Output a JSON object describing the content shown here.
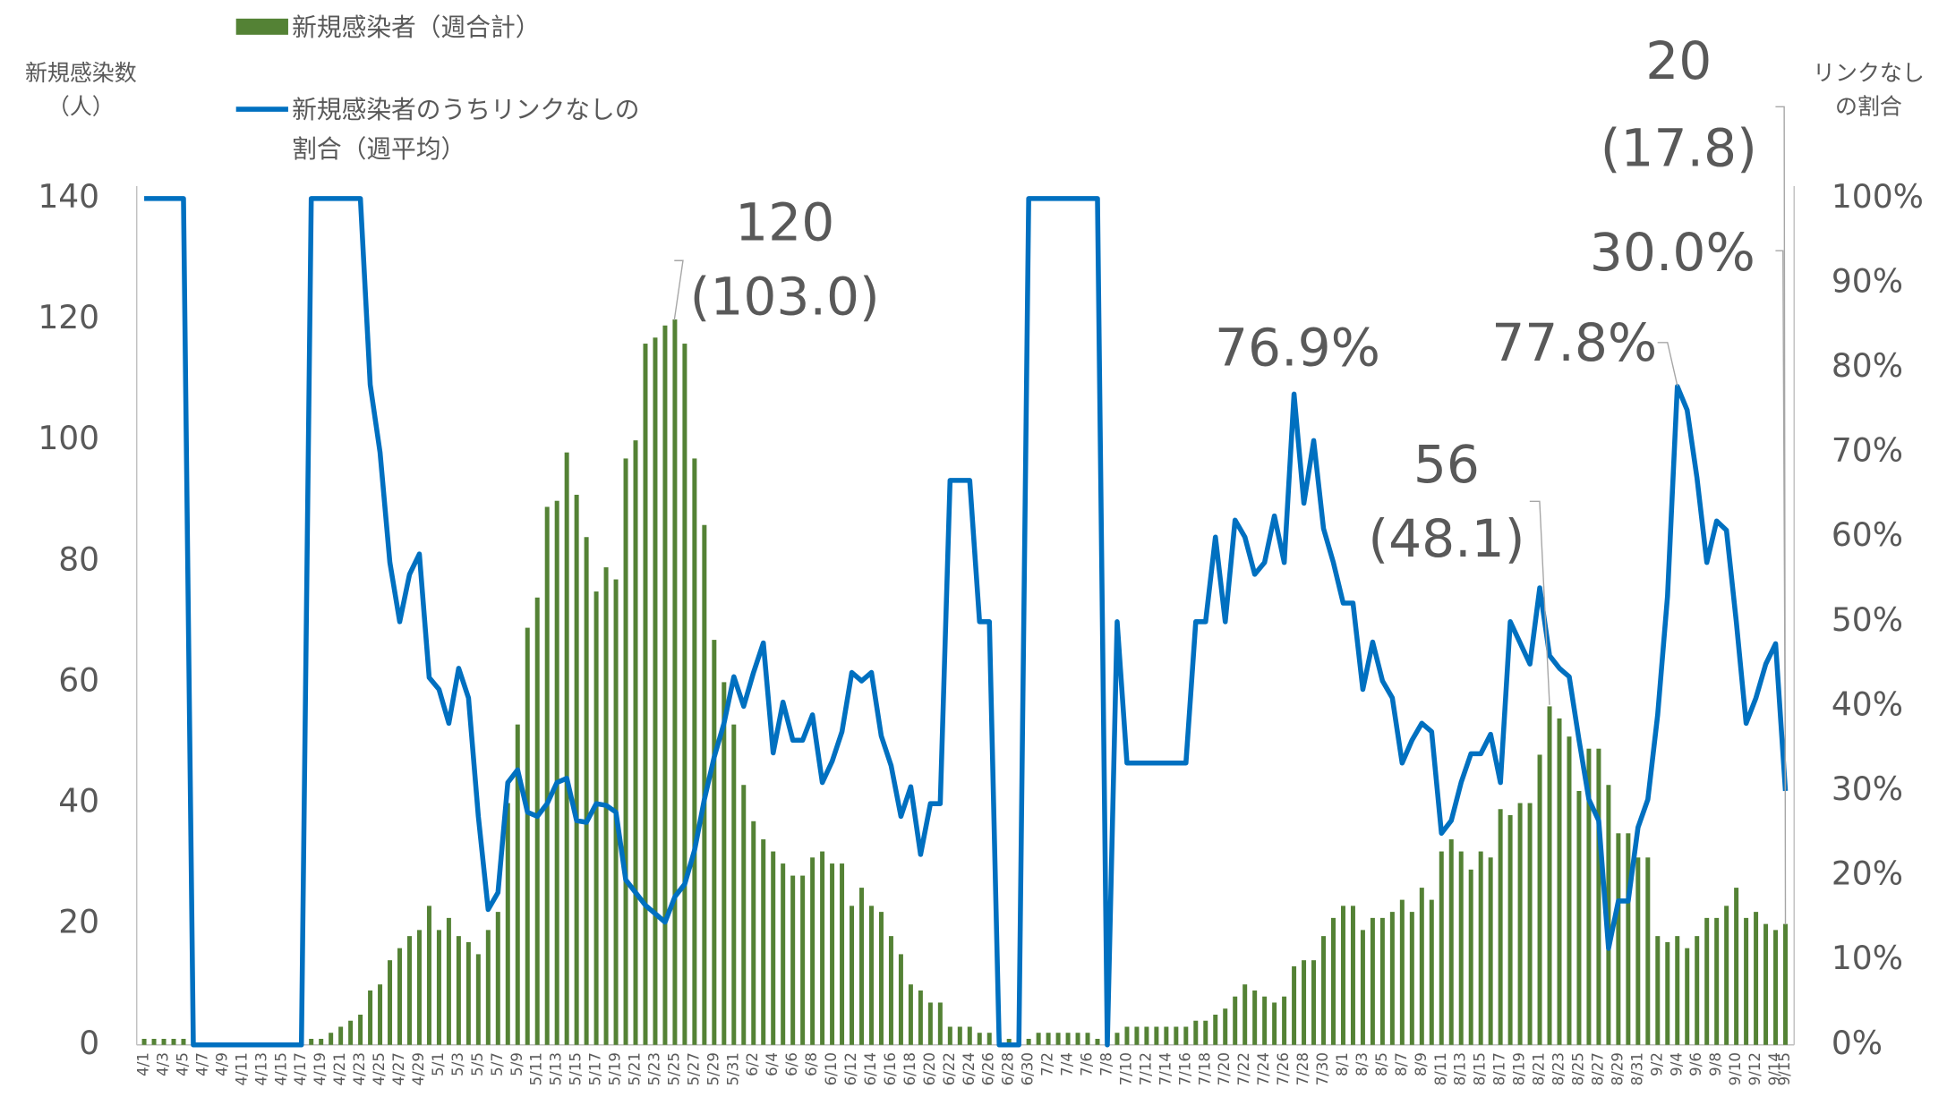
{
  "chart_data": {
    "type": "bar_line",
    "ylabel": [
      "新規感染数",
      "（人）"
    ],
    "y2label": [
      "リンクなし",
      "の割合"
    ],
    "categories": [
      "4/1",
      null,
      "4/3",
      null,
      "4/5",
      null,
      "4/7",
      null,
      "4/9",
      null,
      "4/11",
      null,
      "4/13",
      null,
      "4/15",
      null,
      "4/17",
      null,
      "4/19",
      null,
      "4/21",
      null,
      "4/23",
      null,
      "4/25",
      null,
      "4/27",
      null,
      "4/29",
      null,
      "5/1",
      null,
      "5/3",
      null,
      "5/5",
      null,
      "5/7",
      null,
      "5/9",
      null,
      "5/11",
      null,
      "5/13",
      null,
      "5/15",
      null,
      "5/17",
      null,
      "5/19",
      null,
      "5/21",
      null,
      "5/23",
      null,
      "5/25",
      null,
      "5/27",
      null,
      "5/29",
      null,
      "5/31",
      null,
      "6/2",
      null,
      "6/4",
      null,
      "6/6",
      null,
      "6/8",
      null,
      "6/10",
      null,
      "6/12",
      null,
      "6/14",
      null,
      "6/16",
      null,
      "6/18",
      null,
      "6/20",
      null,
      "6/22",
      null,
      "6/24",
      null,
      "6/26",
      null,
      "6/28",
      null,
      "6/30",
      null,
      "7/2",
      null,
      "7/4",
      null,
      "7/6",
      null,
      "7/8",
      null,
      "7/10",
      null,
      "7/12",
      null,
      "7/14",
      null,
      "7/16",
      null,
      "7/18",
      null,
      "7/20",
      null,
      "7/22",
      null,
      "7/24",
      null,
      "7/26",
      null,
      "7/28",
      null,
      "7/30",
      null,
      "8/1",
      null,
      "8/3",
      null,
      "8/5",
      null,
      "8/7",
      null,
      "8/9",
      null,
      "8/11",
      null,
      "8/13",
      null,
      "8/15",
      null,
      "8/17",
      null,
      "8/19",
      null,
      "8/21",
      null,
      "8/23",
      null,
      "8/25",
      null,
      "8/27",
      null,
      "8/29",
      null,
      "8/31",
      null,
      "9/2",
      null,
      "9/4",
      null,
      "9/6",
      null,
      "9/8",
      null,
      "9/10",
      null,
      "9/12",
      null,
      "9/14",
      "9/15"
    ],
    "series": [
      {
        "name": "新規感染者（週合計）",
        "type": "bar",
        "color": "#548235",
        "values": [
          1,
          1,
          1,
          1,
          1,
          0,
          0,
          0,
          0,
          0,
          0,
          0,
          0,
          0,
          0,
          0,
          0,
          1,
          1,
          2,
          3,
          4,
          5,
          9,
          10,
          14,
          16,
          18,
          19,
          23,
          19,
          21,
          18,
          17,
          15,
          19,
          22,
          40,
          53,
          69,
          74,
          89,
          90,
          98,
          91,
          84,
          75,
          79,
          77,
          97,
          100,
          116,
          117,
          119,
          120,
          116,
          97,
          86,
          67,
          60,
          53,
          43,
          37,
          34,
          32,
          30,
          28,
          28,
          31,
          32,
          30,
          30,
          23,
          26,
          23,
          22,
          18,
          15,
          10,
          9,
          7,
          7,
          3,
          3,
          3,
          2,
          2,
          1,
          1,
          1,
          1,
          2,
          2,
          2,
          2,
          2,
          2,
          1,
          1,
          2,
          3,
          3,
          3,
          3,
          3,
          3,
          3,
          4,
          4,
          5,
          6,
          8,
          10,
          9,
          8,
          7,
          8,
          13,
          14,
          14,
          18,
          21,
          23,
          23,
          19,
          21,
          21,
          22,
          24,
          22,
          26,
          24,
          32,
          34,
          32,
          29,
          32,
          31,
          39,
          38,
          40,
          40,
          48,
          56,
          54,
          51,
          42,
          49,
          49,
          43,
          35,
          35,
          31,
          31,
          18,
          17,
          18,
          16,
          18,
          21,
          21,
          23,
          26,
          21,
          22,
          20,
          19,
          20
        ]
      },
      {
        "name": "新規感染者のうちリンクなしの割合（週平均）",
        "type": "line",
        "axis": "y2",
        "color": "#0070c0",
        "values": [
          100,
          100,
          100,
          100,
          100,
          0,
          0,
          0,
          0,
          0,
          0,
          0,
          0,
          0,
          0,
          0,
          0,
          100,
          100,
          100,
          100,
          100,
          100,
          78,
          70,
          57,
          50,
          55.6,
          58,
          43.4,
          42,
          38,
          44.5,
          41,
          27,
          16,
          18,
          31,
          32.5,
          27.5,
          27,
          28.5,
          31,
          31.5,
          26.5,
          26.3,
          28.5,
          28.3,
          27.5,
          19.5,
          18,
          16.5,
          15.5,
          14.5,
          17.5,
          19,
          23,
          29,
          34,
          38,
          43.5,
          40,
          44,
          47.5,
          34.5,
          40.5,
          36,
          36,
          39,
          31,
          33.5,
          37,
          44,
          43,
          44,
          36.5,
          33,
          27,
          30.5,
          22.5,
          28.5,
          28.5,
          66.7,
          66.7,
          66.7,
          50,
          50,
          0,
          0,
          0,
          100,
          100,
          100,
          100,
          100,
          100,
          100,
          100,
          0,
          50,
          33.3,
          33.3,
          33.3,
          33.3,
          33.3,
          33.3,
          33.3,
          50,
          50,
          60,
          50,
          62,
          60,
          55.6,
          57,
          62.5,
          57,
          76.9,
          64,
          71.4,
          61,
          57,
          52.2,
          52.2,
          42,
          47.6,
          43,
          41,
          33.3,
          36,
          38,
          37,
          25,
          26.5,
          31,
          34.4,
          34.4,
          36.7,
          31,
          50,
          47.5,
          45,
          54,
          46,
          44.5,
          43.5,
          36,
          29,
          26.5,
          11.4,
          17,
          17,
          25.7,
          29,
          39,
          53,
          77.8,
          75,
          67,
          57,
          61.9,
          60.8,
          50,
          38,
          41,
          45,
          47.4,
          30.0
        ]
      }
    ],
    "ylim": [
      0,
      140
    ],
    "yticks": [
      0,
      20,
      40,
      60,
      80,
      100,
      120,
      140
    ],
    "y2lim": [
      0,
      100
    ],
    "y2ticks": [
      {
        "value": 0,
        "label": "0%"
      },
      {
        "value": 10,
        "label": "10%"
      },
      {
        "value": 20,
        "label": "20%"
      },
      {
        "value": 30,
        "label": "30%"
      },
      {
        "value": 40,
        "label": "40%"
      },
      {
        "value": 50,
        "label": "50%"
      },
      {
        "value": 60,
        "label": "60%"
      },
      {
        "value": 70,
        "label": "70%"
      },
      {
        "value": 80,
        "label": "80%"
      },
      {
        "value": 90,
        "label": "90%"
      },
      {
        "value": 100,
        "label": "100%"
      }
    ],
    "grid": false,
    "annotations": [
      {
        "lines": [
          "120",
          "(103.0)"
        ],
        "color": "#375623"
      },
      {
        "lines": [
          "76.9%"
        ],
        "color": "#0070c0"
      },
      {
        "lines": [
          "56",
          "(48.1)"
        ],
        "color": "#375623"
      },
      {
        "lines": [
          "77.8%"
        ],
        "color": "#0070c0"
      },
      {
        "lines": [
          "20",
          "(17.8)"
        ],
        "color": "#375623"
      },
      {
        "lines": [
          "30.0%"
        ],
        "color": "#0070c0"
      }
    ]
  }
}
